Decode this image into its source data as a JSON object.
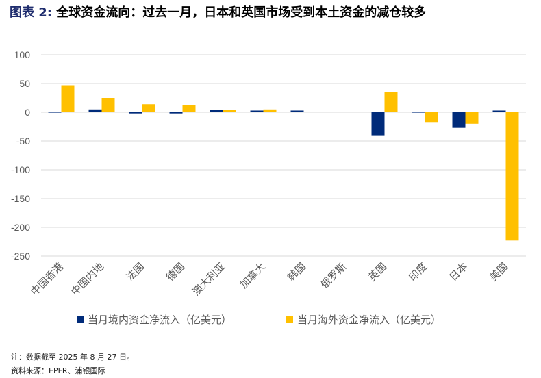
{
  "title": {
    "label": "图表 2:",
    "text": "全球资金流向：过去一月，日本和英国市场受到本土资金的减仓较多"
  },
  "chart_data": {
    "type": "bar",
    "categories": [
      "中国香港",
      "中国内地",
      "法国",
      "德国",
      "澳大利亚",
      "加拿大",
      "韩国",
      "俄罗斯",
      "英国",
      "印度",
      "日本",
      "美国"
    ],
    "series": [
      {
        "name": "当月境内资金净流入（亿美元）",
        "color": "#002b7a",
        "values": [
          0.5,
          5,
          -2,
          -2,
          4,
          3,
          3,
          0,
          -40,
          0.5,
          -27,
          3
        ]
      },
      {
        "name": "当月海外资金净流入（亿美元）",
        "color": "#ffc000",
        "values": [
          47,
          25,
          14,
          12,
          4,
          5,
          0,
          0,
          35,
          -17,
          -20,
          -223
        ]
      }
    ],
    "yticks": [
      100,
      50,
      0,
      -50,
      -100,
      -150,
      -200,
      -250
    ],
    "ylim": [
      -250,
      100
    ],
    "grid": true,
    "legend_position": "bottom"
  },
  "notes": {
    "note": "注：数据截至 2025 年 8 月 27 日。",
    "source": "资料来源：EPFR、浦银国际"
  }
}
